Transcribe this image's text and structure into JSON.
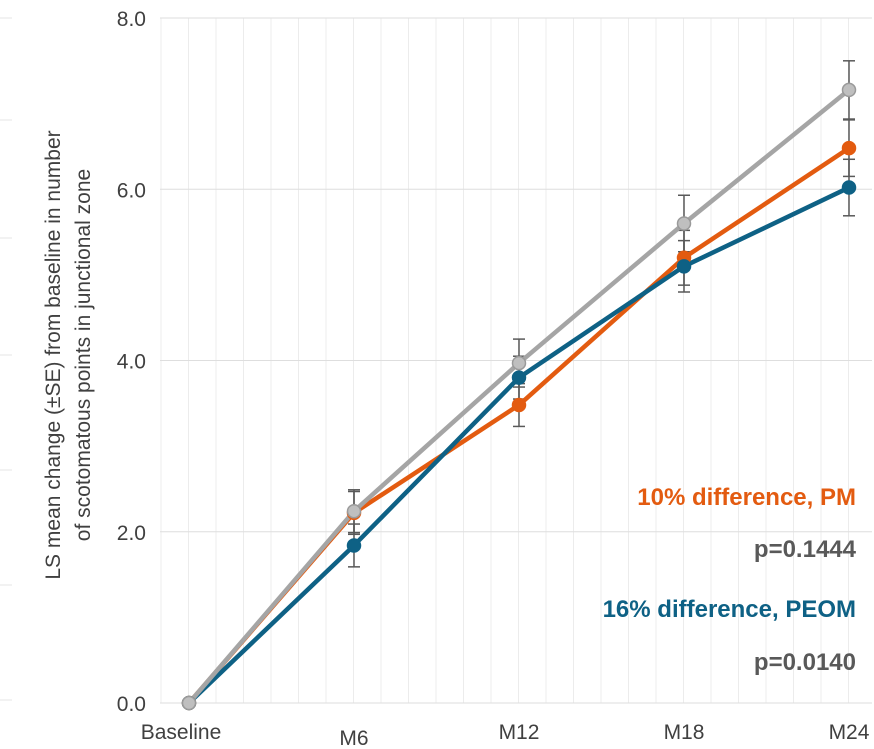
{
  "chart_data": {
    "type": "line",
    "title": "",
    "ylabel_line1": "LS mean change (±SE) from baseline in number",
    "ylabel_line2": "of scotomatous points in junctional zone",
    "xlabel": "",
    "categories": [
      "Baseline",
      "M6",
      "M12",
      "M18",
      "M24"
    ],
    "ylim": [
      0,
      8
    ],
    "yticks": [
      "0.0",
      "2.0",
      "4.0",
      "6.0",
      "8.0"
    ],
    "ytick_values": [
      0,
      2,
      4,
      6,
      8
    ],
    "grid": "vertical minor lines and horizontal major lines",
    "legend": "none",
    "series": [
      {
        "color": "#E35B10",
        "values": [
          0,
          2.22,
          3.48,
          5.2,
          6.48
        ],
        "se": [
          0,
          0.25,
          0.25,
          0.32,
          0.33
        ]
      },
      {
        "color": "#0E6185",
        "values": [
          0,
          1.84,
          3.8,
          5.1,
          6.02
        ],
        "se": [
          0,
          0.25,
          0.25,
          0.3,
          0.33
        ]
      },
      {
        "color": "#A5A5A5",
        "values": [
          0,
          2.24,
          3.97,
          5.6,
          7.16
        ],
        "se": [
          0,
          0.25,
          0.28,
          0.33,
          0.34
        ]
      }
    ],
    "annotations": [
      {
        "text": "10% difference, PM",
        "color": "#E35B10"
      },
      {
        "text": "p=0.1444",
        "color": "#595959"
      },
      {
        "text": "16% difference, PEOM",
        "color": "#0E6185"
      },
      {
        "text": "p=0.0140",
        "color": "#595959"
      }
    ]
  }
}
